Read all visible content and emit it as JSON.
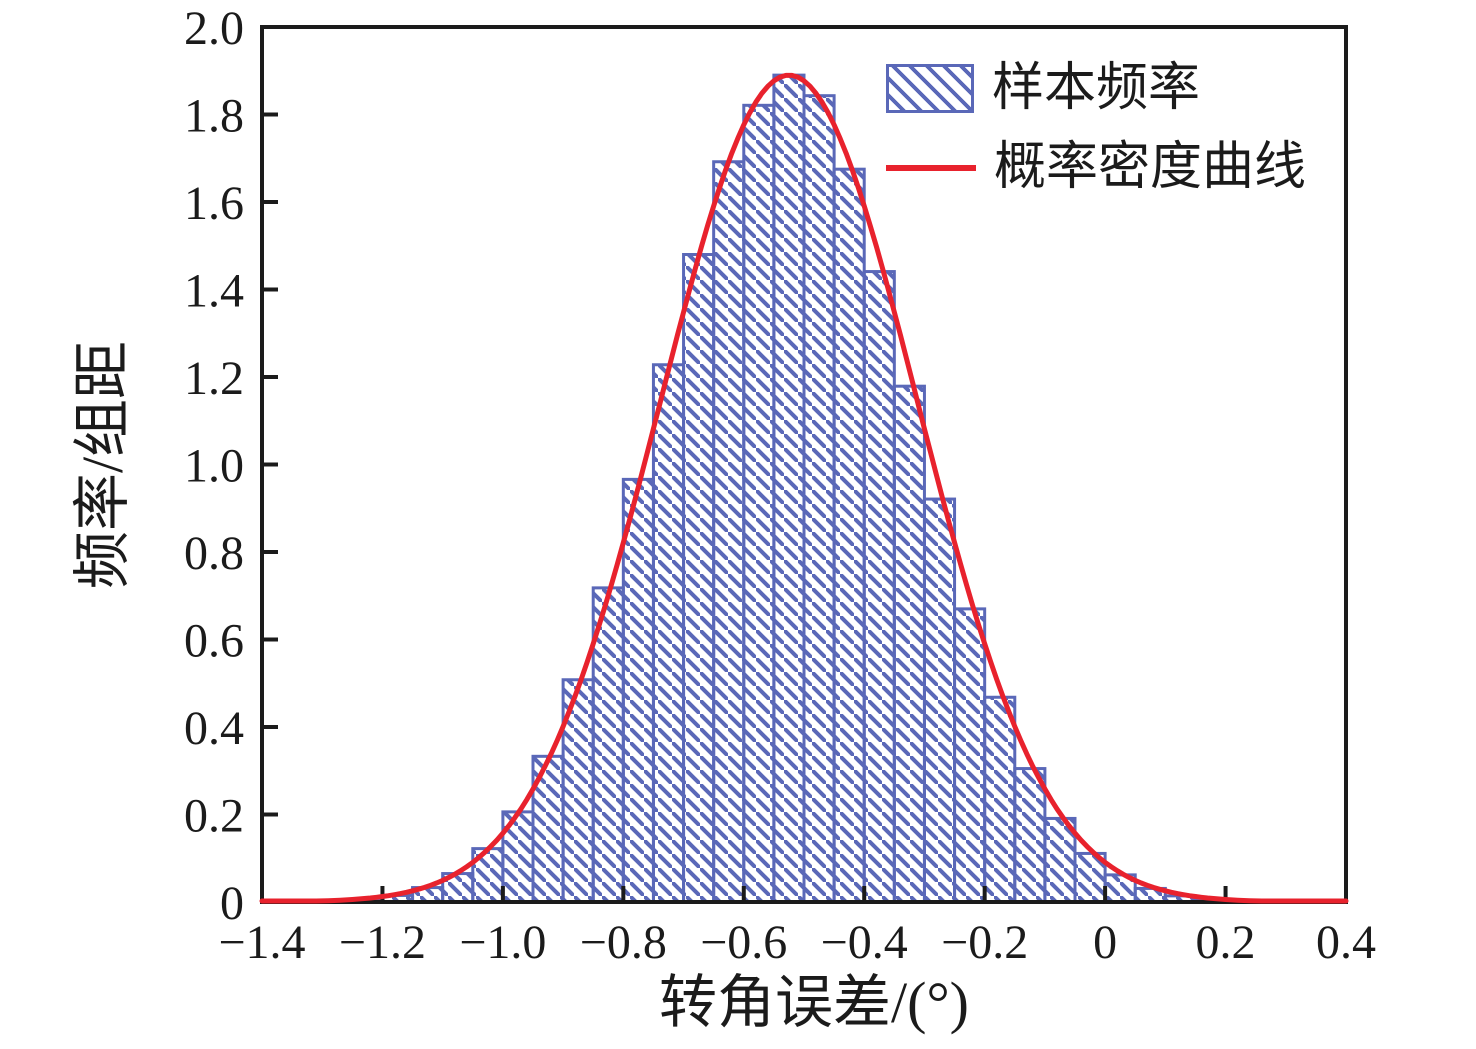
{
  "figure_title": "",
  "legend": {
    "items": [
      {
        "label": "样本频率",
        "marker": "hatched-rect",
        "color": "#5a68b8"
      },
      {
        "label": "概率密度曲线",
        "marker": "line",
        "color": "#e8222d"
      }
    ]
  },
  "colors": {
    "bar_edge": "#5a68b8",
    "bar_hatch": "#5a68b8",
    "curve": "#e8222d",
    "axis": "#1b1b1b",
    "background": "#ffffff"
  },
  "chart_data": {
    "type": "bar",
    "subtype": "histogram_with_normal_density_curve",
    "title": "",
    "xlabel": "转角误差/(°)",
    "ylabel": "频率/组距",
    "xlim": [
      -1.4,
      0.4
    ],
    "ylim": [
      0,
      2.0
    ],
    "grid": false,
    "legend_position": "upper right",
    "bin_width": 0.05,
    "bin_left_edges": [
      -1.3,
      -1.25,
      -1.2,
      -1.15,
      -1.1,
      -1.05,
      -1.0,
      -0.95,
      -0.9,
      -0.85,
      -0.8,
      -0.75,
      -0.7,
      -0.65,
      -0.6,
      -0.55,
      -0.5,
      -0.45,
      -0.4,
      -0.35,
      -0.3,
      -0.25,
      -0.2,
      -0.15,
      -0.1,
      -0.05,
      0.0,
      0.05,
      0.1,
      0.15,
      0.2,
      0.25
    ],
    "values": [
      0.004,
      0.007,
      0.015,
      0.033,
      0.065,
      0.122,
      0.206,
      0.333,
      0.508,
      0.718,
      0.966,
      1.228,
      1.48,
      1.692,
      1.821,
      1.89,
      1.843,
      1.675,
      1.441,
      1.179,
      0.921,
      0.67,
      0.468,
      0.305,
      0.191,
      0.111,
      0.062,
      0.031,
      0.014,
      0.008,
      0.004,
      0.002
    ],
    "series": [
      {
        "name": "样本频率",
        "type": "histogram"
      },
      {
        "name": "概率密度曲线",
        "type": "normal_pdf_curve",
        "mean": -0.525,
        "sigma": 0.213,
        "peak_height": 1.89
      }
    ],
    "x_tick_values": [
      -1.4,
      -1.2,
      -1.0,
      -0.8,
      -0.6,
      -0.4,
      -0.2,
      0,
      0.2,
      0.4
    ],
    "x_tick_labels": [
      "−1.4",
      "−1.2",
      "−1.0",
      "−0.8",
      "−0.6",
      "−0.4",
      "−0.2",
      "0",
      "0.2",
      "0.4"
    ],
    "y_tick_values": [
      0,
      0.2,
      0.4,
      0.6,
      0.8,
      1.0,
      1.2,
      1.4,
      1.6,
      1.8,
      2.0
    ],
    "y_tick_labels": [
      "0",
      "0.2",
      "0.4",
      "0.6",
      "0.8",
      "1.0",
      "1.2",
      "1.4",
      "1.6",
      "1.8",
      "2.0"
    ]
  }
}
